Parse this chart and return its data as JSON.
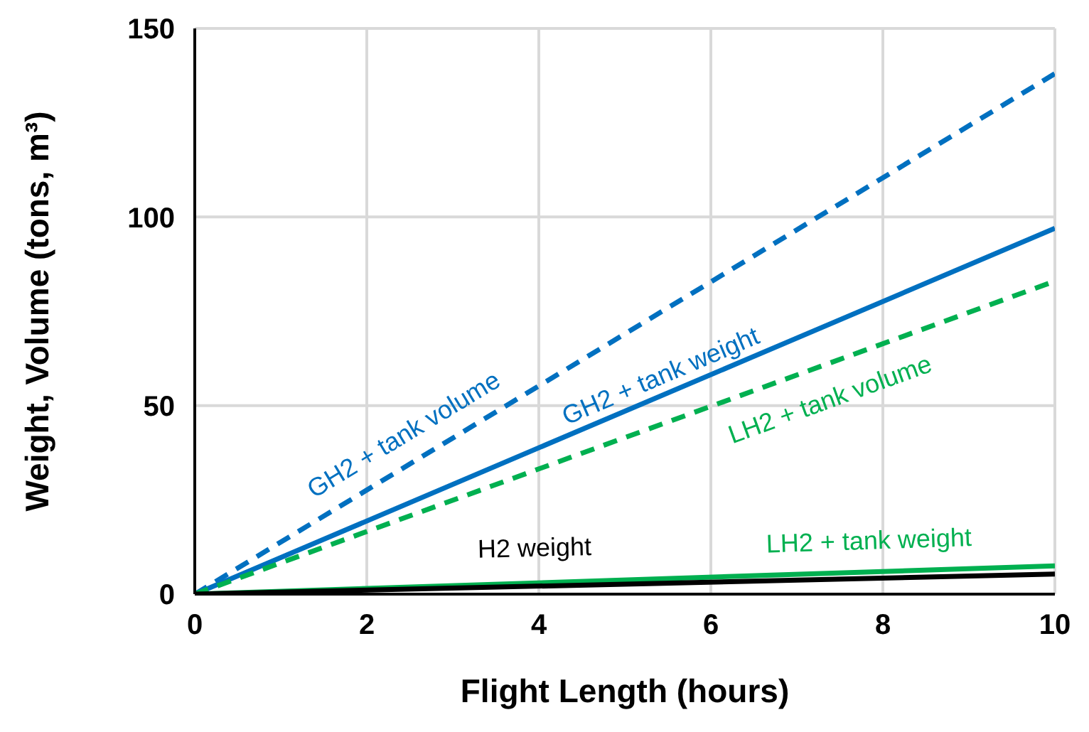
{
  "chart_data": {
    "type": "line",
    "xlabel": "Flight Length (hours)",
    "ylabel": "Weight, Volume (tons, m³)",
    "x": [
      0,
      10
    ],
    "xlim": [
      0,
      10
    ],
    "xticks": [
      0,
      2,
      4,
      6,
      8,
      10
    ],
    "ylim": [
      0,
      150
    ],
    "yticks": [
      0,
      50,
      100,
      150
    ],
    "grid": true,
    "marker": "none",
    "series": [
      {
        "name": "GH2 + tank volume",
        "color": "#0070c0",
        "line_style": "dashed",
        "values": [
          0,
          138
        ]
      },
      {
        "name": "GH2 + tank weight",
        "color": "#0070c0",
        "line_style": "solid",
        "values": [
          0,
          97
        ]
      },
      {
        "name": "LH2 + tank volume",
        "color": "#00b050",
        "line_style": "dashed",
        "values": [
          0,
          83
        ]
      },
      {
        "name": "LH2 + tank weight",
        "color": "#00b050",
        "line_style": "solid",
        "values": [
          0,
          7.5
        ]
      },
      {
        "name": "H2 weight",
        "color": "#000000",
        "line_style": "solid",
        "values": [
          0,
          5.3
        ]
      }
    ]
  }
}
